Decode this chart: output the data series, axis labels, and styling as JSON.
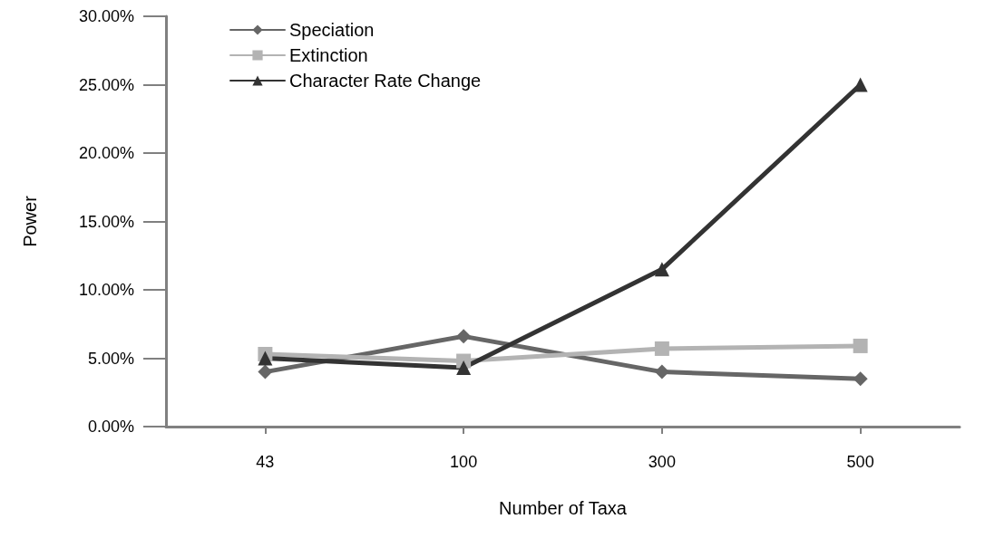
{
  "chart_data": {
    "type": "line",
    "xlabel": "Number of Taxa",
    "ylabel": "Power",
    "categories": [
      "43",
      "100",
      "300",
      "500"
    ],
    "series": [
      {
        "name": "Speciation",
        "color": "#666666",
        "marker": "diamond",
        "values": [
          4.0,
          6.6,
          4.0,
          3.5
        ]
      },
      {
        "name": "Extinction",
        "color": "#b3b3b3",
        "marker": "square",
        "values": [
          5.3,
          4.8,
          5.7,
          5.9
        ]
      },
      {
        "name": "Character Rate Change",
        "color": "#333333",
        "marker": "triangle",
        "values": [
          5.0,
          4.3,
          11.5,
          25.0
        ]
      }
    ],
    "ylim": [
      0,
      30
    ],
    "yticks": [
      {
        "value": 0,
        "label": "0.00%"
      },
      {
        "value": 5,
        "label": "5.00%"
      },
      {
        "value": 10,
        "label": "10.00%"
      },
      {
        "value": 15,
        "label": "15.00%"
      },
      {
        "value": 20,
        "label": "20.00%"
      },
      {
        "value": 25,
        "label": "25.00%"
      },
      {
        "value": 30,
        "label": "30.00%"
      }
    ],
    "grid": false,
    "legend": "top left",
    "line_style": "solid"
  }
}
